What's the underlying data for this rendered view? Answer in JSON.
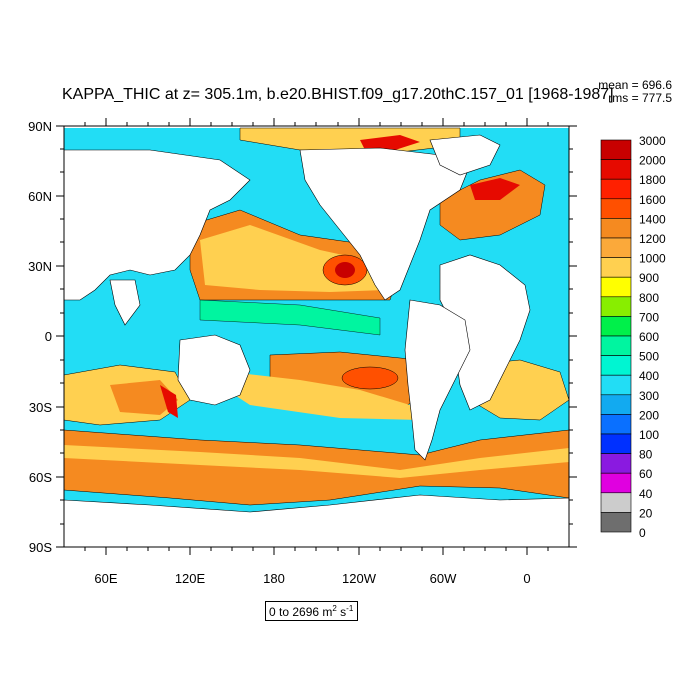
{
  "title": "KAPPA_THIC at z= 305.1m, b.e20.BHIST.f09_g17.20thC.157_01 [1968-1987]",
  "stats": {
    "mean": "mean = 696.6",
    "rms": "rms = 777.5"
  },
  "range_note": {
    "prefix": "0 to 2696 m",
    "exp1": "2",
    "mid": " s",
    "exp2": "-1"
  },
  "map": {
    "lat_labels": [
      "90N",
      "60N",
      "30N",
      "0",
      "30S",
      "60S",
      "90S"
    ],
    "lon_labels": [
      "60E",
      "120E",
      "180",
      "120W",
      "60W",
      "0"
    ],
    "land_color": "#ffffff",
    "ocean_base_color": "#22ddf5"
  },
  "colorbar": {
    "levels": [
      "3000",
      "2000",
      "1800",
      "1600",
      "1400",
      "1200",
      "1000",
      "900",
      "800",
      "700",
      "600",
      "500",
      "400",
      "300",
      "200",
      "100",
      "80",
      "60",
      "40",
      "20",
      "0"
    ],
    "colors": [
      "#c80000",
      "#e60a00",
      "#ff2000",
      "#ff5000",
      "#f58a20",
      "#fba93a",
      "#ffd050",
      "#ffff00",
      "#88ee00",
      "#00f04a",
      "#00f5a0",
      "#00f5d2",
      "#22ddf5",
      "#12aaf0",
      "#0a70ff",
      "#0030ff",
      "#8a1ae0",
      "#e000e0",
      "#cccccc",
      "#6e6e6e"
    ]
  }
}
